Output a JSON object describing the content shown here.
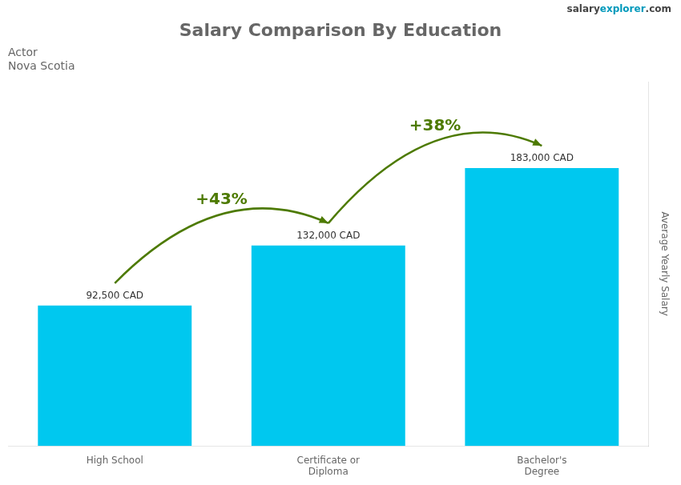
{
  "chart_data": {
    "type": "bar",
    "title": "Salary Comparison By Education",
    "subtitle": [
      "Actor",
      "Nova Scotia"
    ],
    "ylabel": "Average Yearly Salary",
    "watermark": [
      "salary",
      "explorer",
      ".com"
    ],
    "categories": [
      "High School",
      "Certificate or\nDiploma",
      "Bachelor's\nDegree"
    ],
    "values": [
      92500,
      132000,
      183000
    ],
    "value_labels": [
      "92,500 CAD",
      "132,000 CAD",
      "183,000 CAD"
    ],
    "data_labels": true,
    "annotations": [
      "+43%",
      "+38%"
    ],
    "color": "#00c8ef",
    "ylim": [
      0,
      240000
    ],
    "grid": false,
    "tick_labels": "x"
  }
}
